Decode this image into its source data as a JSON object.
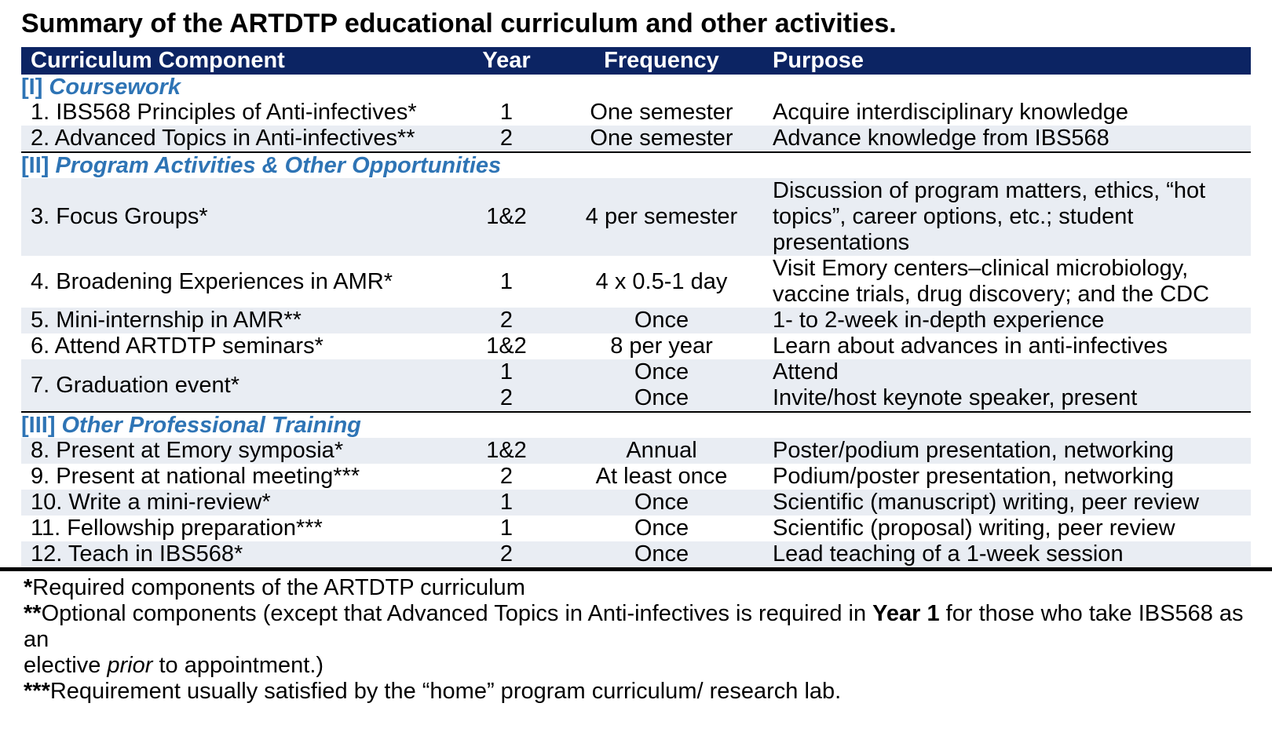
{
  "title": "Summary of the ARTDTP educational curriculum and other activities.",
  "colors": {
    "header_bg": "#0c2463",
    "header_text": "#ffffff",
    "section_text": "#2e74b5",
    "row_shaded": "#e9edf3",
    "rule": "#000000"
  },
  "table": {
    "columns": [
      "Curriculum Component",
      "Year",
      "Frequency",
      "Purpose"
    ],
    "sections": [
      {
        "bracket": "[I]",
        "name": "Coursework",
        "rows": [
          {
            "component": "1. IBS568 Principles of Anti-infectives*",
            "year": "1",
            "frequency": "One semester",
            "purpose": "Acquire interdisciplinary knowledge",
            "shaded": false
          },
          {
            "component": "2. Advanced Topics in Anti-infectives**",
            "year": "2",
            "frequency": "One semester",
            "purpose": "Advance knowledge from IBS568",
            "shaded": true
          }
        ]
      },
      {
        "bracket": "[II]",
        "name": "Program Activities & Other Opportunities",
        "rows": [
          {
            "component": "3. Focus Groups*",
            "year": "1&2",
            "frequency": "4 per semester",
            "purpose": "Discussion of program matters, ethics, “hot topics”, career options, etc.; student presentations",
            "shaded": true
          },
          {
            "component": "4. Broadening Experiences in AMR*",
            "year": "1",
            "frequency": "4 x 0.5-1 day",
            "purpose": "Visit Emory centers–clinical microbiology, vaccine trials, drug discovery; and the CDC",
            "shaded": false
          },
          {
            "component": "5. Mini-internship in AMR**",
            "year": "2",
            "frequency": "Once",
            "purpose": "1- to 2-week in-depth experience",
            "shaded": true
          },
          {
            "component": "6. Attend ARTDTP seminars*",
            "year": "1&2",
            "frequency": "8 per year",
            "purpose": "Learn about advances in anti-infectives",
            "shaded": false
          },
          {
            "component": "7. Graduation event*",
            "shaded": true,
            "subrows": [
              {
                "year": "1",
                "frequency": "Once",
                "purpose": "Attend"
              },
              {
                "year": "2",
                "frequency": "Once",
                "purpose": "Invite/host keynote speaker, present"
              }
            ]
          }
        ]
      },
      {
        "bracket": "[III]",
        "name": "Other Professional Training",
        "rows": [
          {
            "component": "8. Present at Emory symposia*",
            "year": "1&2",
            "frequency": "Annual",
            "purpose": "Poster/podium presentation, networking",
            "shaded": true
          },
          {
            "component": "9. Present at national meeting***",
            "year": "2",
            "frequency": "At least once",
            "purpose": "Podium/poster presentation, networking",
            "shaded": false
          },
          {
            "component": "10. Write a mini-review*",
            "year": "1",
            "frequency": "Once",
            "purpose": "Scientific (manuscript) writing, peer review",
            "shaded": true
          },
          {
            "component": "11. Fellowship preparation***",
            "year": "1",
            "frequency": "Once",
            "purpose": "Scientific (proposal) writing, peer review",
            "shaded": false
          },
          {
            "component": "12. Teach in IBS568*",
            "year": "2",
            "frequency": "Once",
            "purpose": "Lead teaching of a 1-week session",
            "shaded": true
          }
        ]
      }
    ]
  },
  "footnotes": [
    {
      "segments": [
        {
          "text": "*",
          "bold": true
        },
        {
          "text": "Required components of the ARTDTP curriculum"
        }
      ]
    },
    {
      "segments": [
        {
          "text": "**",
          "bold": true
        },
        {
          "text": "Optional components (except that Advanced Topics in Anti-infectives is required in "
        },
        {
          "text": "Year 1",
          "bold": true
        },
        {
          "text": " for those who take IBS568 as an "
        },
        {
          "line_break": true
        },
        {
          "text": "elective "
        },
        {
          "text": "prior",
          "italic": true
        },
        {
          "text": " to appointment.)"
        }
      ]
    },
    {
      "segments": [
        {
          "text": "***",
          "bold": true
        },
        {
          "text": "Requirement usually satisfied by the “home” program curriculum/ research lab."
        }
      ]
    }
  ]
}
